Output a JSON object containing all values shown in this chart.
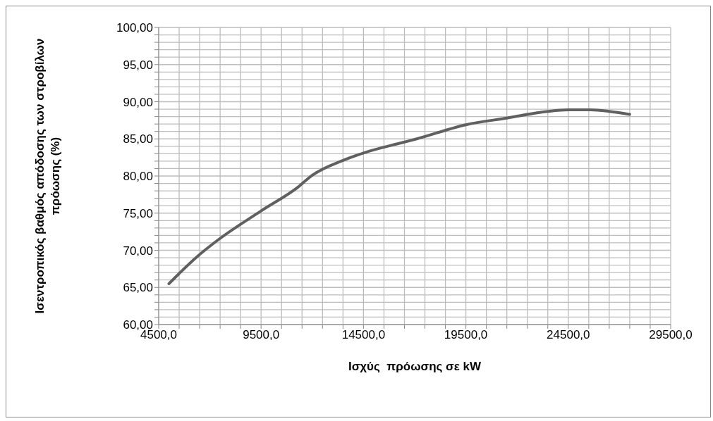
{
  "chart_data": {
    "type": "line",
    "xlabel": "Ισχύς  πρόωσης σε kW",
    "ylabel": "Ισεντροπικός βαθμός απόδοσης των στροβίλων πρόωσης (%)",
    "series": [
      {
        "color": "#606060",
        "x": [
          5000,
          6400,
          7400,
          9500,
          11300,
          12000,
          13500,
          14500,
          16400,
          17100,
          19500,
          21500,
          23500,
          24500,
          25600,
          26500,
          27500
        ],
        "values": [
          65.5,
          69.2,
          71.4,
          75.3,
          78.5,
          80.1,
          82.1,
          83.1,
          84.5,
          85.0,
          86.9,
          87.8,
          88.7,
          88.9,
          88.9,
          88.7,
          88.3
        ]
      }
    ],
    "xlim": [
      4500,
      29500
    ],
    "xticks": [
      {
        "value": 4500,
        "label": "4500,0"
      },
      {
        "value": 5500,
        "label": null
      },
      {
        "value": 6500,
        "label": null
      },
      {
        "value": 7500,
        "label": null
      },
      {
        "value": 8500,
        "label": null
      },
      {
        "value": 9500,
        "label": "9500,0"
      },
      {
        "value": 10500,
        "label": null
      },
      {
        "value": 11500,
        "label": null
      },
      {
        "value": 12500,
        "label": null
      },
      {
        "value": 13500,
        "label": null
      },
      {
        "value": 14500,
        "label": "14500,0"
      },
      {
        "value": 15500,
        "label": null
      },
      {
        "value": 16500,
        "label": null
      },
      {
        "value": 17500,
        "label": null
      },
      {
        "value": 18500,
        "label": null
      },
      {
        "value": 19500,
        "label": "19500,0"
      },
      {
        "value": 20500,
        "label": null
      },
      {
        "value": 21500,
        "label": null
      },
      {
        "value": 22500,
        "label": null
      },
      {
        "value": 23500,
        "label": null
      },
      {
        "value": 24500,
        "label": "24500,0"
      },
      {
        "value": 25500,
        "label": null
      },
      {
        "value": 26500,
        "label": null
      },
      {
        "value": 27500,
        "label": null
      },
      {
        "value": 28500,
        "label": null
      },
      {
        "value": 29500,
        "label": "29500,0"
      }
    ],
    "ylim": [
      60,
      100
    ],
    "yticks": [
      {
        "value": 60,
        "label": "60,00"
      },
      {
        "value": 61,
        "label": null
      },
      {
        "value": 62,
        "label": null
      },
      {
        "value": 63,
        "label": null
      },
      {
        "value": 64,
        "label": null
      },
      {
        "value": 65,
        "label": "65,00"
      },
      {
        "value": 66,
        "label": null
      },
      {
        "value": 67,
        "label": null
      },
      {
        "value": 68,
        "label": null
      },
      {
        "value": 69,
        "label": null
      },
      {
        "value": 70,
        "label": "70,00"
      },
      {
        "value": 71,
        "label": null
      },
      {
        "value": 72,
        "label": null
      },
      {
        "value": 73,
        "label": null
      },
      {
        "value": 74,
        "label": null
      },
      {
        "value": 75,
        "label": "75,00"
      },
      {
        "value": 76,
        "label": null
      },
      {
        "value": 77,
        "label": null
      },
      {
        "value": 78,
        "label": null
      },
      {
        "value": 79,
        "label": null
      },
      {
        "value": 80,
        "label": "80,00"
      },
      {
        "value": 81,
        "label": null
      },
      {
        "value": 82,
        "label": null
      },
      {
        "value": 83,
        "label": null
      },
      {
        "value": 84,
        "label": null
      },
      {
        "value": 85,
        "label": "85,00"
      },
      {
        "value": 86,
        "label": null
      },
      {
        "value": 87,
        "label": null
      },
      {
        "value": 88,
        "label": null
      },
      {
        "value": 89,
        "label": null
      },
      {
        "value": 90,
        "label": "90,00"
      },
      {
        "value": 91,
        "label": null
      },
      {
        "value": 92,
        "label": null
      },
      {
        "value": 93,
        "label": null
      },
      {
        "value": 94,
        "label": null
      },
      {
        "value": 95,
        "label": "95,00"
      },
      {
        "value": 96,
        "label": null
      },
      {
        "value": 97,
        "label": null
      },
      {
        "value": 98,
        "label": null
      },
      {
        "value": 99,
        "label": null
      },
      {
        "value": 100,
        "label": "100,00"
      }
    ],
    "grid": true,
    "marker": "none",
    "line_style": "solid",
    "legend": false
  }
}
